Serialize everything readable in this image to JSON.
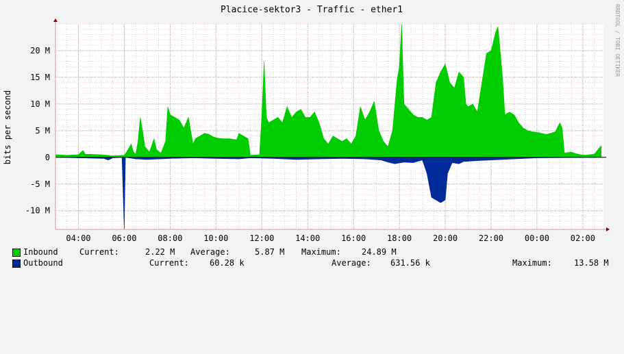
{
  "chart_data": {
    "type": "area",
    "title": "Placice-sektor3 - Traffic - ether1",
    "ylabel": "bits per second",
    "watermark": "RRDTOOL / TOBI OETIKER",
    "xlim_hours": [
      3.0,
      26.9
    ],
    "ylim": [
      -13.5,
      25
    ],
    "x_ticks": [
      {
        "value": 4,
        "label": "04:00"
      },
      {
        "value": 6,
        "label": "06:00"
      },
      {
        "value": 8,
        "label": "08:00"
      },
      {
        "value": 10,
        "label": "10:00"
      },
      {
        "value": 12,
        "label": "12:00"
      },
      {
        "value": 14,
        "label": "14:00"
      },
      {
        "value": 16,
        "label": "16:00"
      },
      {
        "value": 18,
        "label": "18:00"
      },
      {
        "value": 20,
        "label": "20:00"
      },
      {
        "value": 22,
        "label": "22:00"
      },
      {
        "value": 24,
        "label": "00:00"
      },
      {
        "value": 26,
        "label": "02:00"
      }
    ],
    "y_ticks": [
      {
        "value": 20,
        "label": "20 M"
      },
      {
        "value": 15,
        "label": "15 M"
      },
      {
        "value": 10,
        "label": "10 M"
      },
      {
        "value": 5,
        "label": "5 M"
      },
      {
        "value": 0,
        "label": "0"
      },
      {
        "value": -5,
        "label": "-5 M"
      },
      {
        "value": -10,
        "label": "-10 M"
      }
    ],
    "grid": true,
    "series": [
      {
        "name": "Inbound",
        "color": "#00CC00",
        "points": [
          [
            3.0,
            0.5
          ],
          [
            3.5,
            0.4
          ],
          [
            4.0,
            0.5
          ],
          [
            4.2,
            1.3
          ],
          [
            4.3,
            0.6
          ],
          [
            5.0,
            0.5
          ],
          [
            5.5,
            0.3
          ],
          [
            6.0,
            0.4
          ],
          [
            6.1,
            1.0
          ],
          [
            6.3,
            2.5
          ],
          [
            6.4,
            1.0
          ],
          [
            6.5,
            0.6
          ],
          [
            6.6,
            3.0
          ],
          [
            6.7,
            7.5
          ],
          [
            6.8,
            5.0
          ],
          [
            6.9,
            2.0
          ],
          [
            7.1,
            1.0
          ],
          [
            7.3,
            3.5
          ],
          [
            7.4,
            1.5
          ],
          [
            7.6,
            0.8
          ],
          [
            7.8,
            3.0
          ],
          [
            7.9,
            9.5
          ],
          [
            8.0,
            8.0
          ],
          [
            8.2,
            7.5
          ],
          [
            8.4,
            7.0
          ],
          [
            8.6,
            5.5
          ],
          [
            8.8,
            7.5
          ],
          [
            9.0,
            2.5
          ],
          [
            9.1,
            3.5
          ],
          [
            9.3,
            4.0
          ],
          [
            9.5,
            4.5
          ],
          [
            9.7,
            4.3
          ],
          [
            9.9,
            3.8
          ],
          [
            10.1,
            3.6
          ],
          [
            10.3,
            3.5
          ],
          [
            10.6,
            3.5
          ],
          [
            10.9,
            3.3
          ],
          [
            11.0,
            4.5
          ],
          [
            11.2,
            4.0
          ],
          [
            11.4,
            3.5
          ],
          [
            11.5,
            0.4
          ],
          [
            11.9,
            0.5
          ],
          [
            12.0,
            8.0
          ],
          [
            12.1,
            18.0
          ],
          [
            12.2,
            7.5
          ],
          [
            12.3,
            6.5
          ],
          [
            12.5,
            7.0
          ],
          [
            12.7,
            7.5
          ],
          [
            12.9,
            6.5
          ],
          [
            13.1,
            9.5
          ],
          [
            13.3,
            7.5
          ],
          [
            13.5,
            8.5
          ],
          [
            13.7,
            9.0
          ],
          [
            13.9,
            7.5
          ],
          [
            14.1,
            7.5
          ],
          [
            14.3,
            8.5
          ],
          [
            14.5,
            6.5
          ],
          [
            14.7,
            3.5
          ],
          [
            14.9,
            2.5
          ],
          [
            15.1,
            4.0
          ],
          [
            15.3,
            3.5
          ],
          [
            15.5,
            3.0
          ],
          [
            15.7,
            3.5
          ],
          [
            15.9,
            2.5
          ],
          [
            16.1,
            4.0
          ],
          [
            16.3,
            9.5
          ],
          [
            16.5,
            7.0
          ],
          [
            16.7,
            8.5
          ],
          [
            16.9,
            10.5
          ],
          [
            17.1,
            5.0
          ],
          [
            17.3,
            3.0
          ],
          [
            17.5,
            2.0
          ],
          [
            17.7,
            5.0
          ],
          [
            17.9,
            14.5
          ],
          [
            18.0,
            17.0
          ],
          [
            18.1,
            25.0
          ],
          [
            18.2,
            10.0
          ],
          [
            18.4,
            9.0
          ],
          [
            18.6,
            8.0
          ],
          [
            18.8,
            7.5
          ],
          [
            19.0,
            7.5
          ],
          [
            19.2,
            7.0
          ],
          [
            19.4,
            7.5
          ],
          [
            19.6,
            14.0
          ],
          [
            19.8,
            16.0
          ],
          [
            20.0,
            17.5
          ],
          [
            20.2,
            14.0
          ],
          [
            20.4,
            13.0
          ],
          [
            20.6,
            16.0
          ],
          [
            20.8,
            15.0
          ],
          [
            20.9,
            10.0
          ],
          [
            21.0,
            9.5
          ],
          [
            21.2,
            10.0
          ],
          [
            21.4,
            8.5
          ],
          [
            21.6,
            14.0
          ],
          [
            21.8,
            19.5
          ],
          [
            22.0,
            20.0
          ],
          [
            22.2,
            23.5
          ],
          [
            22.3,
            24.5
          ],
          [
            22.5,
            15.0
          ],
          [
            22.6,
            8.0
          ],
          [
            22.8,
            8.5
          ],
          [
            23.0,
            8.0
          ],
          [
            23.2,
            6.5
          ],
          [
            23.4,
            5.5
          ],
          [
            23.6,
            5.0
          ],
          [
            23.8,
            4.8
          ],
          [
            24.0,
            4.7
          ],
          [
            24.2,
            4.5
          ],
          [
            24.4,
            4.3
          ],
          [
            24.6,
            4.5
          ],
          [
            24.8,
            4.8
          ],
          [
            25.0,
            6.5
          ],
          [
            25.1,
            5.5
          ],
          [
            25.2,
            0.8
          ],
          [
            25.5,
            1.0
          ],
          [
            25.7,
            0.7
          ],
          [
            25.9,
            0.5
          ],
          [
            26.1,
            0.4
          ],
          [
            26.5,
            0.6
          ],
          [
            26.8,
            2.2
          ]
        ]
      },
      {
        "name": "Outbound",
        "color": "#002A97",
        "points": [
          [
            3.0,
            0
          ],
          [
            5.1,
            -0.2
          ],
          [
            5.3,
            -0.5
          ],
          [
            5.5,
            -0.1
          ],
          [
            5.9,
            0
          ],
          [
            6.0,
            -13.5
          ],
          [
            6.05,
            0
          ],
          [
            6.5,
            -0.3
          ],
          [
            7.0,
            -0.4
          ],
          [
            8.0,
            -0.2
          ],
          [
            9.0,
            -0.1
          ],
          [
            10.0,
            -0.2
          ],
          [
            11.0,
            -0.3
          ],
          [
            11.5,
            -0.1
          ],
          [
            12.5,
            -0.2
          ],
          [
            13.5,
            -0.4
          ],
          [
            14.5,
            -0.3
          ],
          [
            15.5,
            -0.2
          ],
          [
            16.5,
            -0.3
          ],
          [
            17.2,
            -0.5
          ],
          [
            17.5,
            -0.9
          ],
          [
            17.8,
            -1.2
          ],
          [
            18.2,
            -0.9
          ],
          [
            18.6,
            -1.0
          ],
          [
            19.0,
            -0.5
          ],
          [
            19.2,
            -3.0
          ],
          [
            19.4,
            -7.5
          ],
          [
            19.6,
            -8.0
          ],
          [
            19.8,
            -8.5
          ],
          [
            20.0,
            -8.0
          ],
          [
            20.1,
            -3.0
          ],
          [
            20.3,
            -1.0
          ],
          [
            20.6,
            -1.2
          ],
          [
            20.8,
            -0.8
          ],
          [
            21.5,
            -0.6
          ],
          [
            22.0,
            -0.5
          ],
          [
            22.5,
            -0.4
          ],
          [
            23.0,
            -0.3
          ],
          [
            24.0,
            -0.1
          ],
          [
            26.9,
            0
          ]
        ]
      }
    ]
  },
  "legend": [
    {
      "name": "Inbound",
      "color": "#00CC00",
      "current_label": "Current:",
      "current": "2.22 M",
      "average_label": "Average:",
      "average": "5.87 M",
      "maximum_label": "Maximum:",
      "maximum": "24.89 M"
    },
    {
      "name": "Outbound",
      "color": "#002A97",
      "current_label": "Current:",
      "current": "60.28 k",
      "average_label": "Average:",
      "average": "631.56 k",
      "maximum_label": "Maximum:",
      "maximum": "13.58 M"
    }
  ]
}
